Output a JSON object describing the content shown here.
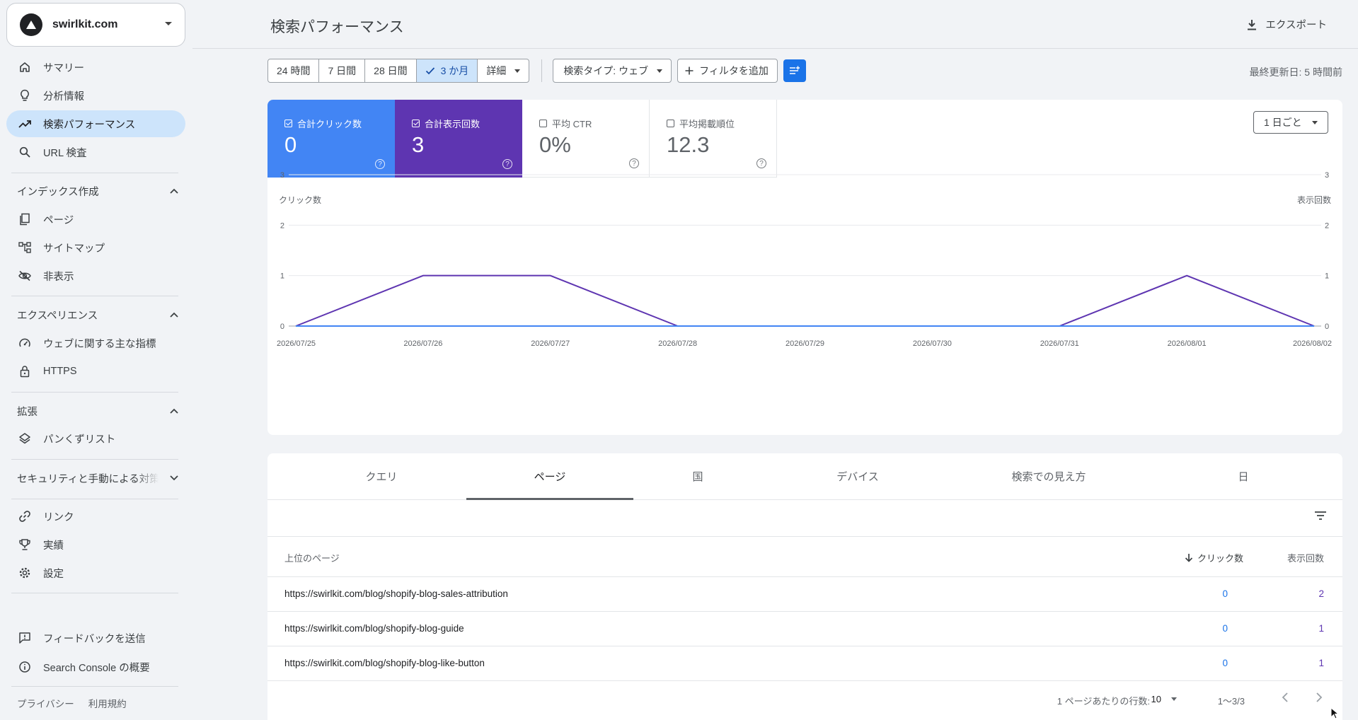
{
  "sidebar": {
    "property": "swirlkit.com",
    "nav_top": [
      {
        "label": "サマリー",
        "icon": "home-icon"
      },
      {
        "label": "分析情報",
        "icon": "lightbulb-icon"
      },
      {
        "label": "検索パフォーマンス",
        "icon": "trending-up-icon",
        "active": true
      },
      {
        "label": "URL 検査",
        "icon": "search-icon"
      }
    ],
    "section_index": {
      "title": "インデックス作成",
      "items": [
        {
          "label": "ページ",
          "icon": "pages-icon"
        },
        {
          "label": "サイトマップ",
          "icon": "sitemap-icon"
        },
        {
          "label": "非表示",
          "icon": "visibility-off-icon"
        }
      ]
    },
    "section_experience": {
      "title": "エクスペリエンス",
      "items": [
        {
          "label": "ウェブに関する主な指標",
          "icon": "speed-icon"
        },
        {
          "label": "HTTPS",
          "icon": "lock-icon"
        }
      ]
    },
    "section_enhance": {
      "title": "拡張",
      "items": [
        {
          "label": "パンくずリスト",
          "icon": "layers-icon"
        }
      ]
    },
    "section_security": {
      "title": "セキュリティと手動による対策"
    },
    "nav_bottom": [
      {
        "label": "リンク",
        "icon": "link-icon"
      },
      {
        "label": "実績",
        "icon": "trophy-icon"
      },
      {
        "label": "設定",
        "icon": "gear-icon"
      }
    ],
    "nav_footer": [
      {
        "label": "フィードバックを送信",
        "icon": "feedback-icon"
      },
      {
        "label": "Search Console の概要",
        "icon": "info-icon"
      }
    ],
    "links": [
      "プライバシー",
      "利用規約"
    ]
  },
  "header": {
    "title": "検索パフォーマンス",
    "export": "エクスポート"
  },
  "toolbar": {
    "ranges": [
      "24 時間",
      "7 日間",
      "28 日間",
      "3 か月",
      "詳細"
    ],
    "selected_range": "3 か月",
    "search_type": "検索タイプ: ウェブ",
    "add_filter": "フィルタを追加",
    "updated": "最終更新日: 5 時間前"
  },
  "metrics": [
    {
      "label": "合計クリック数",
      "value": "0",
      "checked": true,
      "color": "#4285f4"
    },
    {
      "label": "合計表示回数",
      "value": "3",
      "checked": true,
      "color": "#5e35b1"
    },
    {
      "label": "平均 CTR",
      "value": "0%",
      "checked": false
    },
    {
      "label": "平均掲載順位",
      "value": "12.3",
      "checked": false
    }
  ],
  "granularity": "1 日ごと",
  "chart_data": {
    "type": "line",
    "categories": [
      "2026/07/25",
      "2026/07/26",
      "2026/07/27",
      "2026/07/28",
      "2026/07/29",
      "2026/07/30",
      "2026/07/31",
      "2026/08/01",
      "2026/08/02"
    ],
    "series": [
      {
        "name": "合計クリック数",
        "axis": "left",
        "color": "#4285f4",
        "values": [
          0,
          0,
          0,
          0,
          0,
          0,
          0,
          0,
          0
        ]
      },
      {
        "name": "合計表示回数",
        "axis": "right",
        "color": "#5e35b1",
        "values": [
          0,
          1,
          1,
          0,
          0,
          0,
          0,
          1,
          0
        ]
      }
    ],
    "ylabel_left": "クリック数",
    "ylabel_right": "表示回数",
    "yticks": [
      0,
      1,
      2,
      3
    ],
    "ylim": [
      0,
      3
    ],
    "grid": true
  },
  "tabs": [
    "クエリ",
    "ページ",
    "国",
    "デバイス",
    "検索での見え方",
    "日"
  ],
  "active_tab": "ページ",
  "table": {
    "header": {
      "page": "上位のページ",
      "clicks": "クリック数",
      "impressions": "表示回数"
    },
    "rows": [
      {
        "url": "https://swirlkit.com/blog/shopify-blog-sales-attribution",
        "clicks": "0",
        "impressions": "2"
      },
      {
        "url": "https://swirlkit.com/blog/shopify-blog-guide",
        "clicks": "0",
        "impressions": "1"
      },
      {
        "url": "https://swirlkit.com/blog/shopify-blog-like-button",
        "clicks": "0",
        "impressions": "1"
      }
    ],
    "rows_per_page_label": "1 ページあたりの行数:",
    "rows_per_page": "10",
    "range": "1〜3/3"
  }
}
